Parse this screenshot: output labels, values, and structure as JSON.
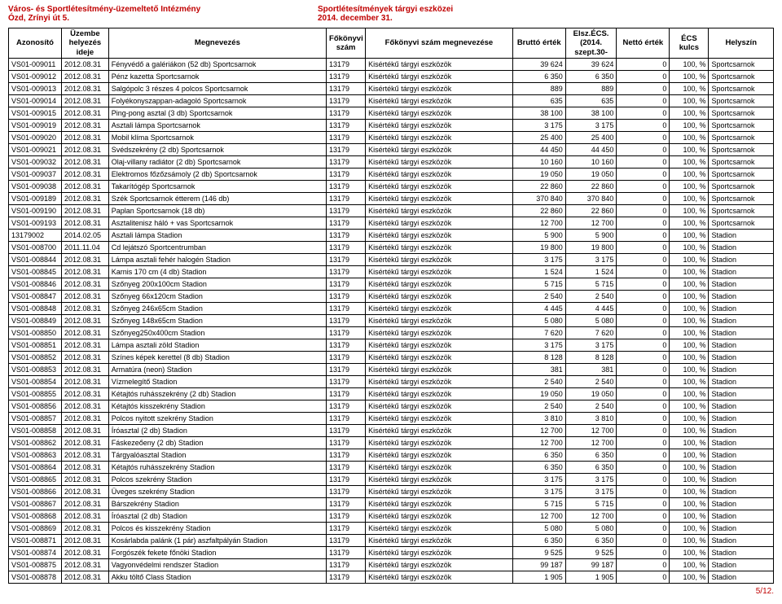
{
  "header": {
    "left_line1": "Város- és Sportlétesítmény-üzemeltető Intézmény",
    "left_line2": "Ózd, Zrínyi út 5.",
    "right_line1": "Sportlétesítmények tárgyi eszközei",
    "right_line2": "2014. december 31."
  },
  "columns": {
    "azonosito": "Azonosító",
    "ideje": "Üzembe helyezés ideje",
    "megnev": "Megnevezés",
    "fkszam": "Főkönyvi szám",
    "fkmeg": "Főkönyvi szám megnevezése",
    "brutto": "Bruttó érték",
    "elsz": "Elsz.ÉCS. (2014. szept.30-",
    "netto": "Nettó érték",
    "ecs": "ÉCS kulcs",
    "hely": "Helyszín"
  },
  "rows": [
    {
      "a": "VS01-009011",
      "i": "2012.08.31",
      "m": "Fényvédő a galériákon (52 db) Sportcsarnok",
      "f": "13179",
      "fm": "Kisértékű tárgyi eszközök",
      "b": "39 624",
      "e": "39 624",
      "n": "0",
      "ecs": "100, %",
      "h": "Sportcsarnok"
    },
    {
      "a": "VS01-009012",
      "i": "2012.08.31",
      "m": "Pénz kazetta Sportcsarnok",
      "f": "13179",
      "fm": "Kisértékű tárgyi eszközök",
      "b": "6 350",
      "e": "6 350",
      "n": "0",
      "ecs": "100, %",
      "h": "Sportcsarnok"
    },
    {
      "a": "VS01-009013",
      "i": "2012.08.31",
      "m": "Salgópolc 3 részes 4 polcos Sportcsarnok",
      "f": "13179",
      "fm": "Kisértékű tárgyi eszközök",
      "b": "889",
      "e": "889",
      "n": "0",
      "ecs": "100, %",
      "h": "Sportcsarnok"
    },
    {
      "a": "VS01-009014",
      "i": "2012.08.31",
      "m": "Folyékonyszappan-adagoló Sportcsarnok",
      "f": "13179",
      "fm": "Kisértékű tárgyi eszközök",
      "b": "635",
      "e": "635",
      "n": "0",
      "ecs": "100, %",
      "h": "Sportcsarnok"
    },
    {
      "a": "VS01-009015",
      "i": "2012.08.31",
      "m": "Ping-pong asztal (3 db) Sportcsarnok",
      "f": "13179",
      "fm": "Kisértékű tárgyi eszközök",
      "b": "38 100",
      "e": "38 100",
      "n": "0",
      "ecs": "100, %",
      "h": "Sportcsarnok"
    },
    {
      "a": "VS01-009019",
      "i": "2012.08.31",
      "m": "Asztali lámpa Sportcsarnok",
      "f": "13179",
      "fm": "Kisértékű tárgyi eszközök",
      "b": "3 175",
      "e": "3 175",
      "n": "0",
      "ecs": "100, %",
      "h": "Sportcsarnok"
    },
    {
      "a": "VS01-009020",
      "i": "2012.08.31",
      "m": "Mobil klíma Sportcsarnok",
      "f": "13179",
      "fm": "Kisértékű tárgyi eszközök",
      "b": "25 400",
      "e": "25 400",
      "n": "0",
      "ecs": "100, %",
      "h": "Sportcsarnok"
    },
    {
      "a": "VS01-009021",
      "i": "2012.08.31",
      "m": "Svédszekrény (2 db) Sportcsarnok",
      "f": "13179",
      "fm": "Kisértékű tárgyi eszközök",
      "b": "44 450",
      "e": "44 450",
      "n": "0",
      "ecs": "100, %",
      "h": "Sportcsarnok"
    },
    {
      "a": "VS01-009032",
      "i": "2012.08.31",
      "m": "Olaj-villany radiátor (2 db) Sportcsarnok",
      "f": "13179",
      "fm": "Kisértékű tárgyi eszközök",
      "b": "10 160",
      "e": "10 160",
      "n": "0",
      "ecs": "100, %",
      "h": "Sportcsarnok"
    },
    {
      "a": "VS01-009037",
      "i": "2012.08.31",
      "m": "Elektromos főzőzsámoly (2 db) Sportcsarnok",
      "f": "13179",
      "fm": "Kisértékű tárgyi eszközök",
      "b": "19 050",
      "e": "19 050",
      "n": "0",
      "ecs": "100, %",
      "h": "Sportcsarnok"
    },
    {
      "a": "VS01-009038",
      "i": "2012.08.31",
      "m": "Takarítógép Sportcsarnok",
      "f": "13179",
      "fm": "Kisértékű tárgyi eszközök",
      "b": "22 860",
      "e": "22 860",
      "n": "0",
      "ecs": "100, %",
      "h": "Sportcsarnok"
    },
    {
      "a": "VS01-009189",
      "i": "2012.08.31",
      "m": "Szék Sportcsarnok étterem (146 db)",
      "f": "13179",
      "fm": "Kisértékű tárgyi eszközök",
      "b": "370 840",
      "e": "370 840",
      "n": "0",
      "ecs": "100, %",
      "h": "Sportcsarnok"
    },
    {
      "a": "VS01-009190",
      "i": "2012.08.31",
      "m": "Paplan Sportcsarnok (18 db)",
      "f": "13179",
      "fm": "Kisértékű tárgyi eszközök",
      "b": "22 860",
      "e": "22 860",
      "n": "0",
      "ecs": "100, %",
      "h": "Sportcsarnok"
    },
    {
      "a": "VS01-009193",
      "i": "2012.08.31",
      "m": "Asztalitenisz háló + vas Sportcsarnok",
      "f": "13179",
      "fm": "Kisértékű tárgyi eszközök",
      "b": "12 700",
      "e": "12 700",
      "n": "0",
      "ecs": "100, %",
      "h": "Sportcsarnok"
    },
    {
      "a": "13179002",
      "i": "2014.02.05",
      "m": "Asztali lámpa Stadion",
      "f": "13179",
      "fm": "Kisértékű tárgyi eszközök",
      "b": "5 900",
      "e": "5 900",
      "n": "0",
      "ecs": "100, %",
      "h": "Stadion"
    },
    {
      "a": "VS01-008700",
      "i": "2011.11.04",
      "m": "Cd lejátszó Sportcentrumban",
      "f": "13179",
      "fm": "Kisértékű tárgyi eszközök",
      "b": "19 800",
      "e": "19 800",
      "n": "0",
      "ecs": "100, %",
      "h": "Stadion"
    },
    {
      "a": "VS01-008844",
      "i": "2012.08.31",
      "m": "Lámpa asztali fehér halogén Stadion",
      "f": "13179",
      "fm": "Kisértékű tárgyi eszközök",
      "b": "3 175",
      "e": "3 175",
      "n": "0",
      "ecs": "100, %",
      "h": "Stadion"
    },
    {
      "a": "VS01-008845",
      "i": "2012.08.31",
      "m": "Karnis 170 cm (4 db) Stadion",
      "f": "13179",
      "fm": "Kisértékű tárgyi eszközök",
      "b": "1 524",
      "e": "1 524",
      "n": "0",
      "ecs": "100, %",
      "h": "Stadion"
    },
    {
      "a": "VS01-008846",
      "i": "2012.08.31",
      "m": "Szőnyeg 200x100cm Stadion",
      "f": "13179",
      "fm": "Kisértékű tárgyi eszközök",
      "b": "5 715",
      "e": "5 715",
      "n": "0",
      "ecs": "100, %",
      "h": "Stadion"
    },
    {
      "a": "VS01-008847",
      "i": "2012.08.31",
      "m": "Szőnyeg 66x120cm Stadion",
      "f": "13179",
      "fm": "Kisértékű tárgyi eszközök",
      "b": "2 540",
      "e": "2 540",
      "n": "0",
      "ecs": "100, %",
      "h": "Stadion"
    },
    {
      "a": "VS01-008848",
      "i": "2012.08.31",
      "m": "Szőnyeg 246x65cm Stadion",
      "f": "13179",
      "fm": "Kisértékű tárgyi eszközök",
      "b": "4 445",
      "e": "4 445",
      "n": "0",
      "ecs": "100, %",
      "h": "Stadion"
    },
    {
      "a": "VS01-008849",
      "i": "2012.08.31",
      "m": "Szőnyeg 148x65cm Stadion",
      "f": "13179",
      "fm": "Kisértékű tárgyi eszközök",
      "b": "5 080",
      "e": "5 080",
      "n": "0",
      "ecs": "100, %",
      "h": "Stadion"
    },
    {
      "a": "VS01-008850",
      "i": "2012.08.31",
      "m": "Szőnyeg250x400cm Stadion",
      "f": "13179",
      "fm": "Kisértékű tárgyi eszközök",
      "b": "7 620",
      "e": "7 620",
      "n": "0",
      "ecs": "100, %",
      "h": "Stadion"
    },
    {
      "a": "VS01-008851",
      "i": "2012.08.31",
      "m": "Lámpa asztali zöld Stadion",
      "f": "13179",
      "fm": "Kisértékű tárgyi eszközök",
      "b": "3 175",
      "e": "3 175",
      "n": "0",
      "ecs": "100, %",
      "h": "Stadion"
    },
    {
      "a": "VS01-008852",
      "i": "2012.08.31",
      "m": "Színes képek kerettel (8 db) Stadion",
      "f": "13179",
      "fm": "Kisértékű tárgyi eszközök",
      "b": "8 128",
      "e": "8 128",
      "n": "0",
      "ecs": "100, %",
      "h": "Stadion"
    },
    {
      "a": "VS01-008853",
      "i": "2012.08.31",
      "m": "Armatúra (neon) Stadion",
      "f": "13179",
      "fm": "Kisértékű tárgyi eszközök",
      "b": "381",
      "e": "381",
      "n": "0",
      "ecs": "100, %",
      "h": "Stadion"
    },
    {
      "a": "VS01-008854",
      "i": "2012.08.31",
      "m": "Vízmelegítő Stadion",
      "f": "13179",
      "fm": "Kisértékű tárgyi eszközök",
      "b": "2 540",
      "e": "2 540",
      "n": "0",
      "ecs": "100, %",
      "h": "Stadion"
    },
    {
      "a": "VS01-008855",
      "i": "2012.08.31",
      "m": "Kétajtós ruhásszekrény (2 db) Stadion",
      "f": "13179",
      "fm": "Kisértékű tárgyi eszközök",
      "b": "19 050",
      "e": "19 050",
      "n": "0",
      "ecs": "100, %",
      "h": "Stadion"
    },
    {
      "a": "VS01-008856",
      "i": "2012.08.31",
      "m": "Kétajtós kisszekrény Stadion",
      "f": "13179",
      "fm": "Kisértékű tárgyi eszközök",
      "b": "2 540",
      "e": "2 540",
      "n": "0",
      "ecs": "100, %",
      "h": "Stadion"
    },
    {
      "a": "VS01-008857",
      "i": "2012.08.31",
      "m": "Polcos nyitott szekrény Stadion",
      "f": "13179",
      "fm": "Kisértékű tárgyi eszközök",
      "b": "3 810",
      "e": "3 810",
      "n": "0",
      "ecs": "100, %",
      "h": "Stadion"
    },
    {
      "a": "VS01-008858",
      "i": "2012.08.31",
      "m": "Íróasztal (2 db) Stadion",
      "f": "13179",
      "fm": "Kisértékű tárgyi eszközök",
      "b": "12 700",
      "e": "12 700",
      "n": "0",
      "ecs": "100, %",
      "h": "Stadion"
    },
    {
      "a": "VS01-008862",
      "i": "2012.08.31",
      "m": "Fáskezeőeny (2 db) Stadion",
      "f": "13179",
      "fm": "Kisértékű tárgyi eszközök",
      "b": "12 700",
      "e": "12 700",
      "n": "0",
      "ecs": "100, %",
      "h": "Stadion"
    },
    {
      "a": "VS01-008863",
      "i": "2012.08.31",
      "m": "Tárgyalóasztal  Stadion",
      "f": "13179",
      "fm": "Kisértékű tárgyi eszközök",
      "b": "6 350",
      "e": "6 350",
      "n": "0",
      "ecs": "100, %",
      "h": "Stadion"
    },
    {
      "a": "VS01-008864",
      "i": "2012.08.31",
      "m": "Kétajtós ruhásszekrény Stadion",
      "f": "13179",
      "fm": "Kisértékű tárgyi eszközök",
      "b": "6 350",
      "e": "6 350",
      "n": "0",
      "ecs": "100, %",
      "h": "Stadion"
    },
    {
      "a": "VS01-008865",
      "i": "2012.08.31",
      "m": "Polcos szekrény Stadion",
      "f": "13179",
      "fm": "Kisértékű tárgyi eszközök",
      "b": "3 175",
      "e": "3 175",
      "n": "0",
      "ecs": "100, %",
      "h": "Stadion"
    },
    {
      "a": "VS01-008866",
      "i": "2012.08.31",
      "m": "Üveges szekrény Stadion",
      "f": "13179",
      "fm": "Kisértékű tárgyi eszközök",
      "b": "3 175",
      "e": "3 175",
      "n": "0",
      "ecs": "100, %",
      "h": "Stadion"
    },
    {
      "a": "VS01-008867",
      "i": "2012.08.31",
      "m": "Bárszekrény Stadion",
      "f": "13179",
      "fm": "Kisértékű tárgyi eszközök",
      "b": "5 715",
      "e": "5 715",
      "n": "0",
      "ecs": "100, %",
      "h": "Stadion"
    },
    {
      "a": "VS01-008868",
      "i": "2012.08.31",
      "m": "Íróasztal (2 db) Stadion",
      "f": "13179",
      "fm": "Kisértékű tárgyi eszközök",
      "b": "12 700",
      "e": "12 700",
      "n": "0",
      "ecs": "100, %",
      "h": "Stadion"
    },
    {
      "a": "VS01-008869",
      "i": "2012.08.31",
      "m": "Polcos és kisszekrény Stadion",
      "f": "13179",
      "fm": "Kisértékű tárgyi eszközök",
      "b": "5 080",
      "e": "5 080",
      "n": "0",
      "ecs": "100, %",
      "h": "Stadion"
    },
    {
      "a": "VS01-008871",
      "i": "2012.08.31",
      "m": "Kosárlabda palánk (1 pár) aszfaltpályán Stadion",
      "f": "13179",
      "fm": "Kisértékű tárgyi eszközök",
      "b": "6 350",
      "e": "6 350",
      "n": "0",
      "ecs": "100, %",
      "h": "Stadion"
    },
    {
      "a": "VS01-008874",
      "i": "2012.08.31",
      "m": "Forgószék fekete főnöki Stadion",
      "f": "13179",
      "fm": "Kisértékű tárgyi eszközök",
      "b": "9 525",
      "e": "9 525",
      "n": "0",
      "ecs": "100, %",
      "h": "Stadion"
    },
    {
      "a": "VS01-008875",
      "i": "2012.08.31",
      "m": "Vagyonvédelmi rendszer Stadion",
      "f": "13179",
      "fm": "Kisértékű tárgyi eszközök",
      "b": "99 187",
      "e": "99 187",
      "n": "0",
      "ecs": "100, %",
      "h": "Stadion"
    },
    {
      "a": "VS01-008878",
      "i": "2012.08.31",
      "m": "Akku töltő Class Stadion",
      "f": "13179",
      "fm": "Kisértékű tárgyi eszközök",
      "b": "1 905",
      "e": "1 905",
      "n": "0",
      "ecs": "100, %",
      "h": "Stadion"
    }
  ],
  "footer": "5/12."
}
